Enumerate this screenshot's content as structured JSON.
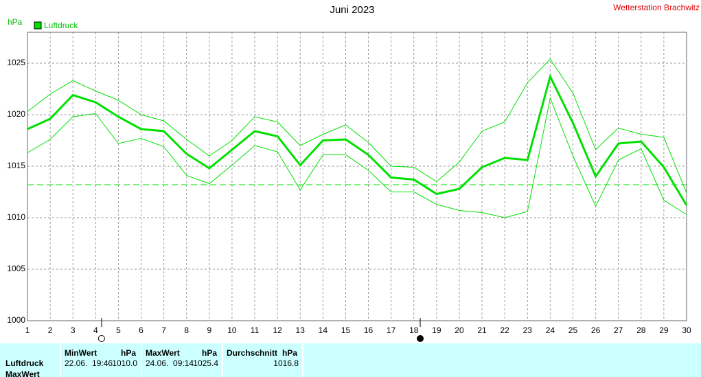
{
  "chart_data": {
    "type": "line",
    "title": "Juni 2023",
    "y_label": "hPa",
    "x": [
      1,
      2,
      3,
      4,
      5,
      6,
      7,
      8,
      9,
      10,
      11,
      12,
      13,
      14,
      15,
      16,
      17,
      18,
      19,
      20,
      21,
      22,
      23,
      24,
      25,
      26,
      27,
      28,
      29,
      30
    ],
    "xlim": [
      1,
      30
    ],
    "xticks": [
      1,
      2,
      3,
      4,
      5,
      6,
      7,
      8,
      9,
      10,
      11,
      12,
      13,
      14,
      15,
      16,
      17,
      18,
      19,
      20,
      21,
      22,
      23,
      24,
      25,
      26,
      27,
      28,
      29,
      30
    ],
    "ylim": [
      1000,
      1028
    ],
    "yticks": [
      1000,
      1005,
      1010,
      1015,
      1020,
      1025
    ],
    "grid": true,
    "series": [
      {
        "name": "Luftdruck",
        "color": "#00e000",
        "values": [
          1018.6,
          1019.6,
          1021.9,
          1021.2,
          1019.8,
          1018.6,
          1018.4,
          1016.2,
          1014.8,
          1016.6,
          1018.4,
          1017.9,
          1015.1,
          1017.5,
          1017.6,
          1016.1,
          1013.9,
          1013.7,
          1012.3,
          1012.8,
          1014.9,
          1015.8,
          1015.6,
          1023.7,
          1019.2,
          1014.0,
          1017.2,
          1017.4,
          1014.9,
          1011.2
        ]
      },
      {
        "color": "#00e000",
        "values": [
          1020.3,
          1022.0,
          1023.3,
          1022.3,
          1021.4,
          1020.0,
          1019.4,
          1017.6,
          1016.0,
          1017.5,
          1019.8,
          1019.3,
          1017.0,
          1018.1,
          1019.0,
          1017.3,
          1015.0,
          1014.9,
          1013.5,
          1015.4,
          1018.4,
          1019.3,
          1023.1,
          1025.4,
          1022.1,
          1016.6,
          1018.7,
          1018.1,
          1017.8,
          1012.4
        ]
      },
      {
        "color": "#00e000",
        "values": [
          1016.3,
          1017.6,
          1019.8,
          1020.1,
          1017.2,
          1017.7,
          1016.9,
          1014.1,
          1013.3,
          1015.1,
          1017.0,
          1016.4,
          1012.7,
          1016.1,
          1016.1,
          1014.6,
          1012.5,
          1012.5,
          1011.3,
          1010.7,
          1010.5,
          1010.0,
          1010.6,
          1021.6,
          1016.0,
          1011.1,
          1015.6,
          1016.7,
          1011.7,
          1010.3
        ]
      }
    ],
    "reference_line": 1013.2,
    "full_moon_x": 4.26,
    "new_moon_x": 18.28
  },
  "station": "Wetterstation Brachwitz",
  "table": {
    "columns": [
      {
        "title": "MinWert",
        "unit": "hPa"
      },
      {
        "title": "MaxWert",
        "unit": "hPa"
      },
      {
        "title": "Durchschnitt",
        "unit": "hPa"
      }
    ],
    "rows": [
      {
        "label": "Luftdruck",
        "cells": [
          {
            "time": "22.06.  19:46",
            "value": "1010.0"
          },
          {
            "time": "24.06.  09:14",
            "value": "1025.4"
          },
          {
            "value": "1016.8"
          }
        ]
      },
      {
        "label": "MaxWert"
      }
    ]
  }
}
